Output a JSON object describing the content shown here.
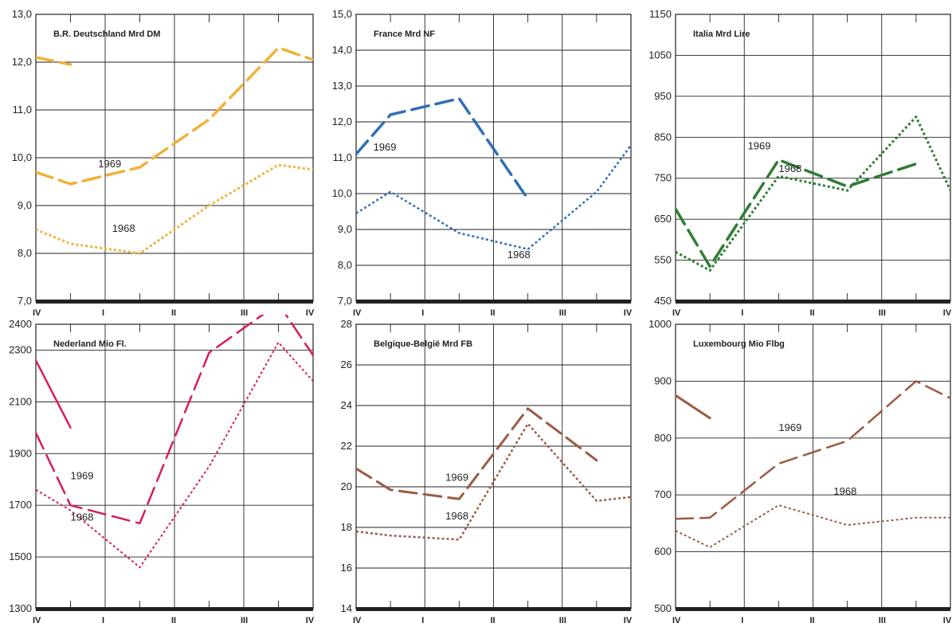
{
  "x_ticks": [
    "IV",
    "I",
    "II",
    "III",
    "IV"
  ],
  "chart_data": [
    {
      "type": "line",
      "title": "B.R. Deutschland Mrd DM",
      "ylim": [
        7.0,
        13.0
      ],
      "y_ticks": [
        "7,0",
        "8,0",
        "9,0",
        "10,0",
        "11,0",
        "12,0",
        "13,0"
      ],
      "grid": true,
      "series": [
        {
          "name": "1969",
          "style": "dashed",
          "color": "#f2b13a",
          "width": 3.5,
          "points": [
            [
              0,
              9.7
            ],
            [
              0.5,
              9.45
            ],
            [
              1.5,
              9.8
            ],
            [
              2.5,
              10.8
            ],
            [
              3.5,
              12.3
            ],
            [
              4,
              12.05
            ]
          ]
        },
        {
          "name": "",
          "style": "dashed",
          "color": "#f2b13a",
          "width": 3.5,
          "points": [
            [
              0,
              12.1
            ],
            [
              0.5,
              11.95
            ]
          ]
        },
        {
          "name": "1968",
          "style": "dotted",
          "color": "#f2b13a",
          "width": 3,
          "points": [
            [
              0,
              8.5
            ],
            [
              0.5,
              8.2
            ],
            [
              1.5,
              8.0
            ],
            [
              2.5,
              9.0
            ],
            [
              3.5,
              9.85
            ],
            [
              4,
              9.75
            ]
          ]
        }
      ],
      "annotations": [
        {
          "text": "1969",
          "x": 0.9,
          "y": 9.8
        },
        {
          "text": "1968",
          "x": 1.1,
          "y": 8.45
        }
      ]
    },
    {
      "type": "line",
      "title": "France Mrd NF",
      "ylim": [
        7.0,
        15.0
      ],
      "y_ticks": [
        "7,0",
        "8,0",
        "9,0",
        "10,0",
        "11,0",
        "12,0",
        "13,0",
        "14,0",
        "15,0"
      ],
      "grid": true,
      "series": [
        {
          "name": "1969",
          "style": "dashed",
          "color": "#2f6fb7",
          "width": 3.5,
          "points": [
            [
              0,
              11.1
            ],
            [
              0.5,
              12.2
            ],
            [
              1.5,
              12.65
            ],
            [
              2.5,
              9.85
            ]
          ]
        },
        {
          "name": "1968",
          "style": "dotted",
          "color": "#2f6fb7",
          "width": 2.5,
          "points": [
            [
              0,
              9.45
            ],
            [
              0.5,
              10.05
            ],
            [
              1.5,
              8.9
            ],
            [
              2.5,
              8.45
            ],
            [
              3.5,
              10.05
            ],
            [
              4,
              11.35
            ]
          ]
        }
      ],
      "annotations": [
        {
          "text": "1969",
          "x": 0.25,
          "y": 11.2
        },
        {
          "text": "1968",
          "x": 2.2,
          "y": 8.2
        }
      ]
    },
    {
      "type": "line",
      "title": "Italia Mrd Lire",
      "ylim": [
        450,
        1150
      ],
      "y_ticks": [
        "450",
        "550",
        "650",
        "750",
        "850",
        "950",
        "1050",
        "1150"
      ],
      "grid": true,
      "series": [
        {
          "name": "1969",
          "style": "dashed",
          "color": "#2e7d32",
          "width": 3.5,
          "points": [
            [
              0,
              675
            ],
            [
              0.5,
              535
            ],
            [
              1.5,
              795
            ],
            [
              2.5,
              730
            ],
            [
              3.5,
              785
            ]
          ]
        },
        {
          "name": "1968",
          "style": "dotted",
          "color": "#2e7d32",
          "width": 3,
          "points": [
            [
              0,
              570
            ],
            [
              0.5,
              525
            ],
            [
              1.5,
              755
            ],
            [
              2.5,
              720
            ],
            [
              3.5,
              900
            ],
            [
              4,
              720
            ]
          ]
        }
      ],
      "annotations": [
        {
          "text": "1969",
          "x": 1.05,
          "y": 820
        },
        {
          "text": "1968",
          "x": 1.5,
          "y": 765
        }
      ]
    },
    {
      "type": "line",
      "title": "Nederland Mio Fl.",
      "ylim": [
        1300,
        2400
      ],
      "y_ticks": [
        "1300",
        "1500",
        "1700",
        "1900",
        "2100",
        "2300",
        "2400"
      ],
      "grid": true,
      "series": [
        {
          "name": "1969",
          "style": "dashed",
          "color": "#d81b60",
          "width": 2.5,
          "points": [
            [
              0,
              1980
            ],
            [
              0.5,
              1700
            ],
            [
              1.5,
              1630
            ],
            [
              2.5,
              2290
            ],
            [
              3.5,
              2480
            ],
            [
              4,
              2280
            ]
          ]
        },
        {
          "name": "",
          "style": "solid",
          "color": "#d81b60",
          "width": 2.5,
          "points": [
            [
              0,
              2260
            ],
            [
              0.5,
              2000
            ]
          ]
        },
        {
          "name": "1968",
          "style": "dotted",
          "color": "#d81b60",
          "width": 2,
          "points": [
            [
              0,
              1760
            ],
            [
              0.5,
              1680
            ],
            [
              1.5,
              1460
            ],
            [
              2.5,
              1850
            ],
            [
              3.5,
              2330
            ],
            [
              4,
              2180
            ]
          ]
        }
      ],
      "annotations": [
        {
          "text": "1969",
          "x": 0.5,
          "y": 1800
        },
        {
          "text": "1968",
          "x": 0.5,
          "y": 1640
        }
      ]
    },
    {
      "type": "line",
      "title": "Belgique-België Mrd FB",
      "ylim": [
        14,
        28
      ],
      "y_ticks": [
        "14",
        "16",
        "18",
        "20",
        "22",
        "24",
        "26",
        "28"
      ],
      "grid": true,
      "series": [
        {
          "name": "1969",
          "style": "dashed",
          "color": "#9c5a42",
          "width": 3,
          "points": [
            [
              0,
              20.9
            ],
            [
              0.5,
              19.85
            ],
            [
              1.5,
              19.4
            ],
            [
              2.5,
              23.85
            ],
            [
              3.5,
              21.3
            ]
          ]
        },
        {
          "name": "1968",
          "style": "dotted",
          "color": "#9c5a42",
          "width": 2.5,
          "points": [
            [
              0,
              17.8
            ],
            [
              0.5,
              17.6
            ],
            [
              1.5,
              17.4
            ],
            [
              2.5,
              23.1
            ],
            [
              3.5,
              19.3
            ],
            [
              4,
              19.5
            ]
          ]
        }
      ],
      "annotations": [
        {
          "text": "1969",
          "x": 1.3,
          "y": 20.3
        },
        {
          "text": "1968",
          "x": 1.3,
          "y": 18.4
        }
      ]
    },
    {
      "type": "line",
      "title": "Luxembourg Mio Flbg",
      "ylim": [
        500,
        1000
      ],
      "y_ticks": [
        "500",
        "600",
        "700",
        "800",
        "900",
        "1000"
      ],
      "grid": true,
      "series": [
        {
          "name": "1969",
          "style": "dashed",
          "color": "#9c5a42",
          "width": 2.5,
          "points": [
            [
              0,
              658
            ],
            [
              0.5,
              660
            ],
            [
              1.5,
              755
            ],
            [
              2.5,
              795
            ],
            [
              3.5,
              900
            ],
            [
              4,
              870
            ]
          ]
        },
        {
          "name": "",
          "style": "solid",
          "color": "#9c5a42",
          "width": 3,
          "points": [
            [
              0,
              875
            ],
            [
              0.5,
              835
            ]
          ]
        },
        {
          "name": "1968",
          "style": "dotted",
          "color": "#9c5a42",
          "width": 2,
          "points": [
            [
              0,
              637
            ],
            [
              0.5,
              608
            ],
            [
              1.5,
              682
            ],
            [
              2.5,
              647
            ],
            [
              3.5,
              660
            ],
            [
              4,
              660
            ]
          ]
        }
      ],
      "annotations": [
        {
          "text": "1969",
          "x": 1.5,
          "y": 812
        },
        {
          "text": "1968",
          "x": 2.3,
          "y": 700
        }
      ]
    }
  ]
}
